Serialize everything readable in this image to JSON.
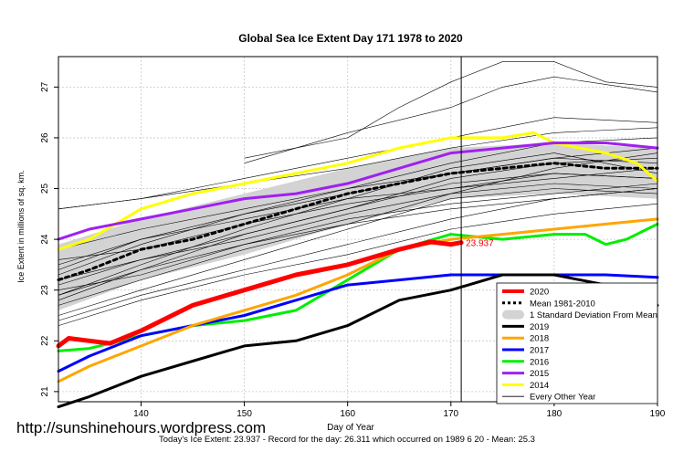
{
  "chart_data": {
    "type": "line",
    "title": "Global Sea Ice Extent Day 171 1978 to 2020",
    "xlabel": "Day of Year",
    "ylabel": "Ice Extent in millions of sq. km.",
    "xlim": [
      132,
      190
    ],
    "ylim": [
      20.8,
      27.6
    ],
    "xticks": [
      140,
      150,
      160,
      170,
      180,
      190
    ],
    "yticks": [
      21,
      22,
      23,
      24,
      25,
      26,
      27
    ],
    "grid": true,
    "current_day": 171,
    "current_value": 23.937,
    "current_value_label": "23.937",
    "legend_position": "bottom-right",
    "legend": [
      {
        "label": "2020",
        "color": "#ff0000",
        "style": "solid-thick"
      },
      {
        "label": "Mean 1981-2010",
        "color": "#000000",
        "style": "dashed"
      },
      {
        "label": "1 Standard Deviation From Mean",
        "color": "#d3d3d3",
        "style": "band"
      },
      {
        "label": "2019",
        "color": "#000000",
        "style": "solid"
      },
      {
        "label": "2018",
        "color": "#ffa500",
        "style": "solid"
      },
      {
        "label": "2017",
        "color": "#0000ff",
        "style": "solid"
      },
      {
        "label": "2016",
        "color": "#00ee00",
        "style": "solid"
      },
      {
        "label": "2015",
        "color": "#a020f0",
        "style": "solid"
      },
      {
        "label": "2014",
        "color": "#ffff00",
        "style": "solid"
      },
      {
        "label": "Every Other Year",
        "color": "#000000",
        "style": "thin"
      }
    ],
    "sd_band": {
      "x": [
        132,
        140,
        150,
        160,
        170,
        180,
        190
      ],
      "upper": [
        23.9,
        24.4,
        24.9,
        25.4,
        25.8,
        25.9,
        25.8
      ],
      "lower": [
        22.6,
        23.2,
        23.7,
        24.3,
        24.8,
        24.9,
        24.8
      ]
    },
    "series": [
      {
        "name": "Mean 1981-2010",
        "color": "#000000",
        "x": [
          132,
          135,
          140,
          145,
          150,
          155,
          160,
          165,
          170,
          175,
          180,
          185,
          190
        ],
        "values": [
          23.2,
          23.4,
          23.8,
          24.0,
          24.3,
          24.6,
          24.9,
          25.1,
          25.3,
          25.4,
          25.5,
          25.4,
          25.4
        ]
      },
      {
        "name": "2014",
        "color": "#ffff00",
        "x": [
          132,
          135,
          140,
          145,
          150,
          155,
          160,
          165,
          170,
          175,
          178,
          180,
          185,
          188,
          190
        ],
        "values": [
          23.8,
          24.0,
          24.6,
          24.9,
          25.1,
          25.3,
          25.5,
          25.8,
          26.0,
          26.0,
          26.1,
          25.9,
          25.7,
          25.5,
          25.15
        ]
      },
      {
        "name": "2015",
        "color": "#a020f0",
        "x": [
          132,
          135,
          140,
          145,
          150,
          155,
          160,
          165,
          170,
          175,
          180,
          185,
          190
        ],
        "values": [
          24.0,
          24.2,
          24.4,
          24.6,
          24.8,
          24.9,
          25.1,
          25.4,
          25.7,
          25.8,
          25.9,
          25.9,
          25.8
        ]
      },
      {
        "name": "2016",
        "color": "#00ee00",
        "x": [
          132,
          135,
          140,
          145,
          150,
          155,
          160,
          165,
          170,
          175,
          180,
          183,
          185,
          187,
          190
        ],
        "values": [
          21.8,
          21.85,
          22.1,
          22.3,
          22.4,
          22.6,
          23.2,
          23.8,
          24.1,
          24.0,
          24.1,
          24.1,
          23.9,
          24.0,
          24.3
        ]
      },
      {
        "name": "2017",
        "color": "#0000ff",
        "x": [
          132,
          135,
          140,
          145,
          150,
          155,
          160,
          165,
          170,
          175,
          180,
          185,
          190
        ],
        "values": [
          21.4,
          21.7,
          22.1,
          22.3,
          22.5,
          22.8,
          23.1,
          23.2,
          23.3,
          23.3,
          23.3,
          23.3,
          23.25
        ]
      },
      {
        "name": "2018",
        "color": "#ffa500",
        "x": [
          132,
          135,
          140,
          145,
          150,
          155,
          160,
          165,
          170,
          175,
          180,
          185,
          190
        ],
        "values": [
          21.2,
          21.5,
          21.9,
          22.3,
          22.6,
          22.9,
          23.3,
          23.8,
          24.0,
          24.1,
          24.2,
          24.3,
          24.4
        ]
      },
      {
        "name": "2019",
        "color": "#000000",
        "x": [
          132,
          135,
          140,
          145,
          150,
          155,
          160,
          165,
          170,
          175,
          180,
          185,
          188,
          190
        ],
        "values": [
          20.7,
          20.9,
          21.3,
          21.6,
          21.9,
          22.0,
          22.3,
          22.8,
          23.0,
          23.3,
          23.3,
          23.1,
          23.0,
          22.7
        ]
      },
      {
        "name": "2020",
        "color": "#ff0000",
        "x": [
          132,
          133,
          135,
          137,
          140,
          145,
          150,
          155,
          160,
          165,
          168,
          170,
          171
        ],
        "values": [
          21.9,
          22.05,
          22.0,
          21.95,
          22.2,
          22.7,
          23.0,
          23.3,
          23.5,
          23.8,
          23.95,
          23.9,
          23.937
        ]
      }
    ],
    "thin_years": [
      {
        "x": [
          132,
          140,
          150,
          160,
          170,
          180,
          190
        ],
        "values": [
          24.6,
          24.8,
          25.1,
          25.4,
          25.8,
          26.1,
          26.2
        ]
      },
      {
        "x": [
          132,
          140,
          150,
          160,
          170,
          180,
          190
        ],
        "values": [
          23.8,
          24.2,
          24.6,
          25.0,
          25.5,
          25.9,
          26.0
        ]
      },
      {
        "x": [
          132,
          140,
          150,
          160,
          170,
          180,
          190
        ],
        "values": [
          23.5,
          24.0,
          24.5,
          24.9,
          25.3,
          25.6,
          25.8
        ]
      },
      {
        "x": [
          132,
          140,
          150,
          160,
          170,
          180,
          190
        ],
        "values": [
          23.2,
          23.6,
          24.1,
          24.6,
          25.2,
          25.5,
          25.6
        ]
      },
      {
        "x": [
          132,
          140,
          150,
          160,
          170,
          180,
          190
        ],
        "values": [
          22.9,
          23.5,
          24.2,
          24.8,
          25.4,
          25.7,
          25.3
        ]
      },
      {
        "x": [
          132,
          140,
          150,
          160,
          170,
          180,
          190
        ],
        "values": [
          22.7,
          23.2,
          23.8,
          24.3,
          24.9,
          25.1,
          25.0
        ]
      },
      {
        "x": [
          132,
          140,
          150,
          160,
          170,
          180,
          190
        ],
        "values": [
          23.6,
          23.8,
          24.3,
          24.7,
          25.0,
          25.3,
          25.2
        ]
      },
      {
        "x": [
          132,
          140,
          150,
          160,
          170,
          180,
          190
        ],
        "values": [
          23.0,
          23.3,
          23.9,
          24.4,
          24.7,
          24.9,
          25.1
        ]
      },
      {
        "x": [
          132,
          140,
          150,
          160,
          170,
          180,
          190
        ],
        "values": [
          22.5,
          23.0,
          23.6,
          24.2,
          24.8,
          25.0,
          24.9
        ]
      },
      {
        "x": [
          132,
          140,
          150,
          160,
          170,
          180,
          190
        ],
        "values": [
          23.4,
          24.0,
          24.4,
          24.8,
          25.0,
          25.2,
          25.4
        ]
      },
      {
        "x": [
          132,
          140,
          150,
          160,
          170,
          180,
          190
        ],
        "values": [
          23.1,
          23.6,
          24.0,
          24.5,
          24.9,
          25.4,
          25.7
        ]
      },
      {
        "x": [
          132,
          140,
          150,
          160,
          170,
          180,
          190
        ],
        "values": [
          22.8,
          23.4,
          23.9,
          24.3,
          24.6,
          24.8,
          25.0
        ]
      },
      {
        "x": [
          132,
          140,
          150,
          160,
          170,
          180,
          190
        ],
        "values": [
          22.4,
          22.9,
          23.4,
          23.9,
          24.4,
          24.8,
          25.0
        ]
      },
      {
        "x": [
          132,
          140,
          150,
          160,
          170,
          180,
          190
        ],
        "values": [
          22.3,
          22.8,
          23.3,
          23.7,
          24.2,
          24.5,
          24.7
        ]
      },
      {
        "x": [
          132,
          140,
          150,
          160,
          170,
          180,
          190
        ],
        "values": [
          23.3,
          23.9,
          24.5,
          25.0,
          25.3,
          25.6,
          25.5
        ]
      },
      {
        "x": [
          132,
          140,
          150,
          160,
          170,
          180,
          190
        ],
        "values": [
          22.9,
          23.4,
          24.1,
          24.6,
          25.1,
          25.3,
          25.2
        ]
      },
      {
        "x": [
          150,
          160,
          165,
          170,
          175,
          180,
          185,
          190
        ],
        "values": [
          25.6,
          26.0,
          26.6,
          27.1,
          27.5,
          27.5,
          27.1,
          27.0
        ]
      },
      {
        "x": [
          150,
          160,
          170,
          175,
          180,
          190
        ],
        "values": [
          25.5,
          26.1,
          26.6,
          27.0,
          27.2,
          26.9
        ]
      },
      {
        "x": [
          132,
          140,
          150,
          160,
          170,
          180,
          190
        ],
        "values": [
          24.6,
          24.8,
          25.2,
          25.6,
          26.0,
          26.4,
          26.3
        ]
      }
    ]
  },
  "watermark": "http://sunshinehours.wordpress.com",
  "footer": "Today's Ice Extent: 23.937  - Record for the day: 26.311 which occurred on 1989 6 20  - Mean: 25.3"
}
